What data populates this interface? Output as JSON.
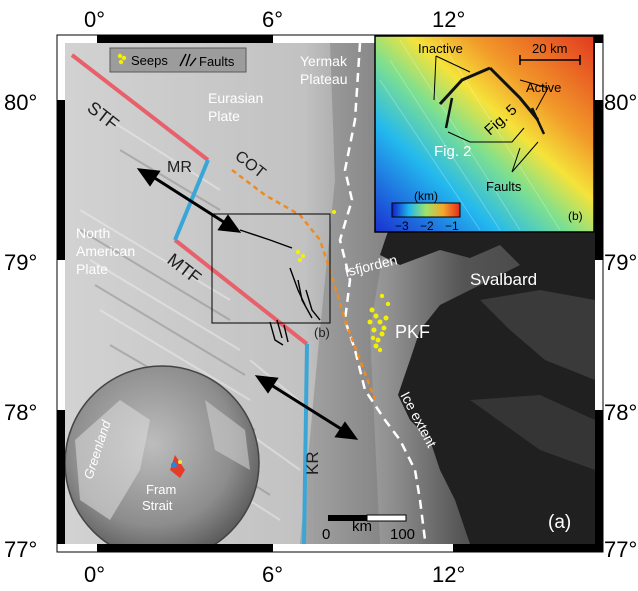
{
  "frame": {
    "top_ticks": [
      "0°",
      "6°",
      "12°"
    ],
    "bottom_ticks": [
      "0°",
      "6°",
      "12°"
    ],
    "left_ticks": [
      "80°",
      "79°",
      "78°",
      "77°"
    ],
    "right_ticks": [
      "80°",
      "79°",
      "78°",
      "77°"
    ]
  },
  "legend": {
    "seeps": "Seeps",
    "faults": "Faults"
  },
  "labels": {
    "yermak_plateau_1": "Yermak",
    "yermak_plateau_2": "Plateau",
    "eurasian_plate_1": "Eurasian",
    "eurasian_plate_2": "Plate",
    "stf": "STF",
    "mr": "MR",
    "cot": "COT",
    "north_american_1": "North",
    "north_american_2": "American",
    "north_american_3": "Plate",
    "mtf": "MTF",
    "isfjorden": "Isfjorden",
    "svalbard": "Svalbard",
    "pkf": "PKF",
    "b_box": "(b)",
    "kr": "KR",
    "ice_extent": "Ice extent",
    "greenland": "Greenland",
    "fram_1": "Fram",
    "fram_2": "Strait",
    "panel_a": "(a)"
  },
  "scalebar": {
    "zero": "0",
    "unit": "km",
    "max": "100"
  },
  "inset": {
    "inactive": "Inactive",
    "active": "Active",
    "fig5": "Fig. 5",
    "fig2": "Fig. 2",
    "faults": "Faults",
    "scale_label": "20 km",
    "colorbar_unit": "(km)",
    "colorbar_ticks": [
      "−3",
      "−2",
      "−1"
    ],
    "panel_b": "(b)"
  },
  "colors": {
    "stf_mtf": "#e8606a",
    "ridges": "#3aa6d8",
    "cot": "#f08a1e",
    "seeps": "#f5f000",
    "ice_extent": "#ffffff",
    "fault_traces": "#000000"
  }
}
